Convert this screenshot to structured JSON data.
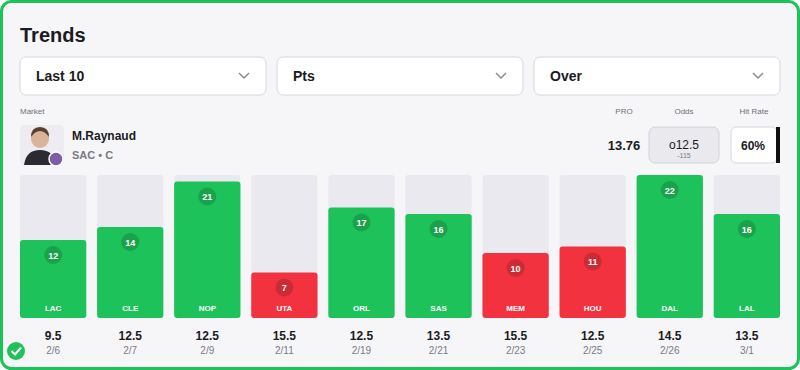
{
  "header": {
    "filters": [
      "Last 10",
      "Pts",
      "Over"
    ],
    "columns": {
      "market": "Market",
      "pro": "PRO",
      "odds": "Odds",
      "hit_rate": "Hit Rate"
    },
    "player": {
      "name": "M.Raynaud",
      "team": "SAC • C"
    },
    "pro": 13.76,
    "odds": {
      "line": "o12.5",
      "price": -115
    },
    "hit_rate": "60%"
  },
  "chart_data": {
    "type": "bar",
    "title": "Trends",
    "categories": [
      "LAC",
      "CLE",
      "NOP",
      "UTA",
      "ORL",
      "SAS",
      "MEM",
      "HOU",
      "DAL",
      "LAL"
    ],
    "values": [
      12,
      14,
      21,
      7,
      17,
      16,
      10,
      11,
      22,
      16
    ],
    "colors": [
      "#1ec25a",
      "#1ec25a",
      "#1ec25a",
      "#f2333f",
      "#1ec25a",
      "#1ec25a",
      "#f2333f",
      "#f2333f",
      "#1ec25a",
      "#1ec25a"
    ],
    "lines": [
      9.5,
      12.5,
      12.5,
      15.5,
      12.5,
      13.5,
      15.5,
      12.5,
      14.5,
      13.5
    ],
    "dates": [
      "2/6",
      "2/7",
      "2/9",
      "2/11",
      "2/19",
      "2/21",
      "2/23",
      "2/25",
      "2/26",
      "3/1"
    ],
    "ylim": [
      0,
      22
    ],
    "tick_labels": false,
    "data_labels": true
  }
}
